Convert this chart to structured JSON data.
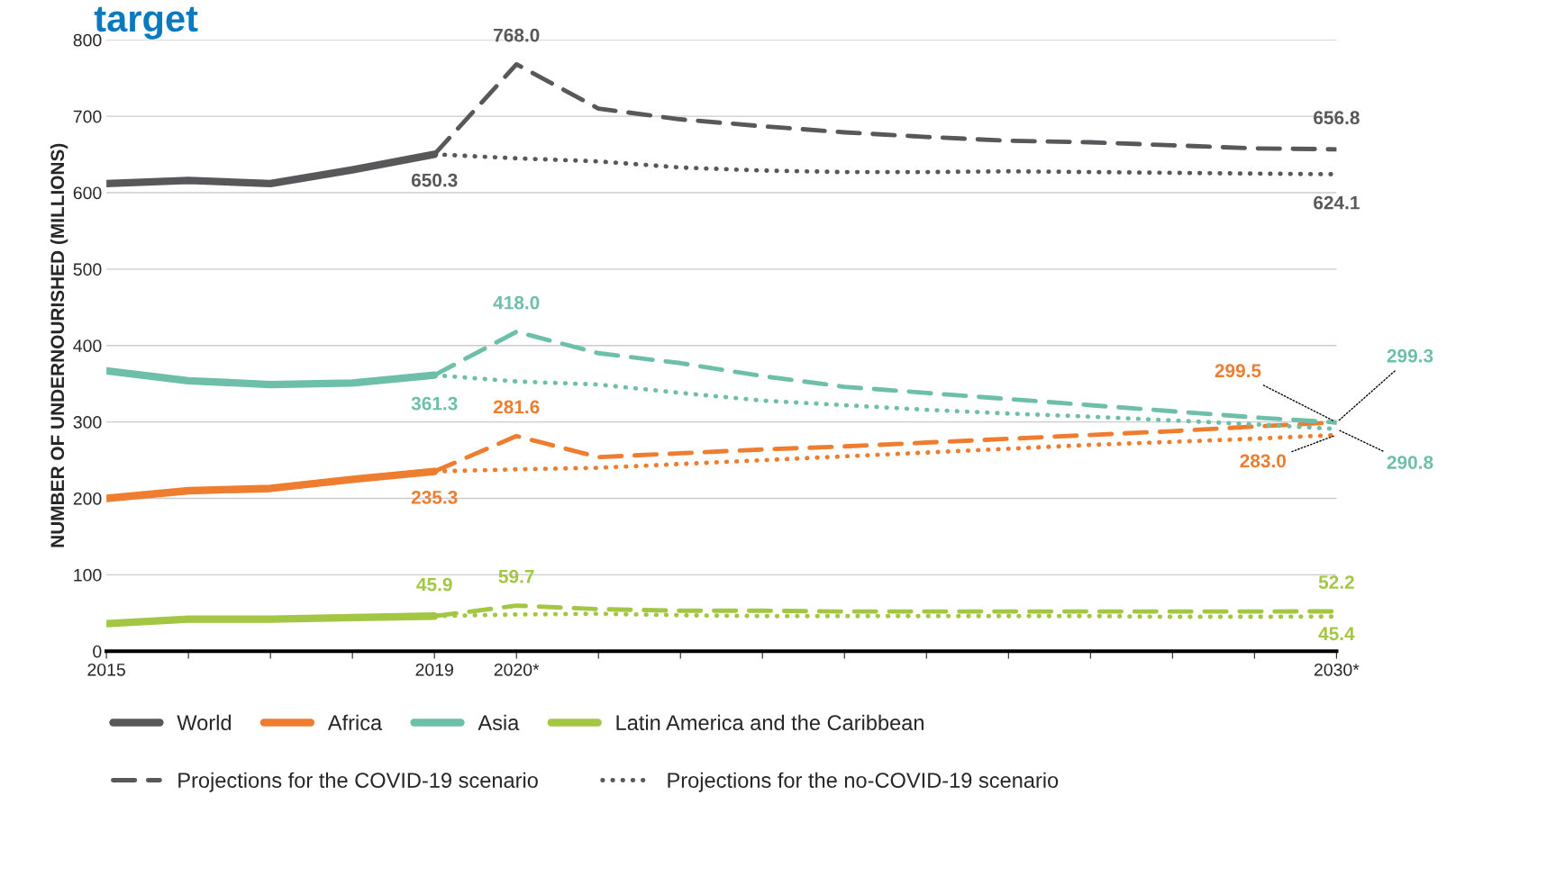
{
  "chart_data": {
    "type": "line",
    "title": "target",
    "ylabel": "NUMBER OF UNDERNOURISHED (MILLIONS)",
    "xlim": [
      2015,
      2030
    ],
    "ylim": [
      0,
      800
    ],
    "yticks": [
      0,
      100,
      200,
      300,
      400,
      500,
      600,
      700,
      800
    ],
    "xticks": [
      2015,
      {
        "value": 2016,
        "label": null
      },
      {
        "value": 2017,
        "label": null
      },
      {
        "value": 2018,
        "label": null
      },
      2019,
      {
        "value": 2020,
        "label": "2020*"
      },
      {
        "value": 2021,
        "label": null
      },
      {
        "value": 2022,
        "label": null
      },
      {
        "value": 2023,
        "label": null
      },
      {
        "value": 2024,
        "label": null
      },
      {
        "value": 2025,
        "label": null
      },
      {
        "value": 2026,
        "label": null
      },
      {
        "value": 2027,
        "label": null
      },
      {
        "value": 2028,
        "label": null
      },
      {
        "value": 2029,
        "label": null
      },
      {
        "value": 2030,
        "label": "2030*"
      }
    ],
    "grid": "y",
    "legend": "bottom",
    "marker": "none",
    "series": [
      {
        "name": "World",
        "color": "#58585a",
        "line_style": "solid",
        "x": [
          2015,
          2016,
          2017,
          2018,
          2019
        ],
        "values": [
          612,
          616,
          612,
          630,
          650.3
        ],
        "value_labels": [
          null,
          null,
          null,
          null,
          "650.3"
        ]
      },
      {
        "name": "Projections for the COVID-19 scenario",
        "color": "#58585a",
        "line_style": "dashed",
        "x": [
          2019,
          2020,
          2021,
          2022,
          2023,
          2024,
          2025,
          2026,
          2027,
          2028,
          2029,
          2030
        ],
        "values": [
          650.3,
          768.0,
          710,
          696,
          687,
          679,
          673,
          668,
          666,
          662,
          658,
          656.8
        ],
        "value_labels": [
          null,
          "768.0",
          null,
          null,
          null,
          null,
          null,
          null,
          null,
          null,
          null,
          "656.8"
        ]
      },
      {
        "name": "Projections for the no-COVID-19 scenario",
        "color": "#58585a",
        "line_style": "dotted",
        "x": [
          2019,
          2020,
          2021,
          2022,
          2023,
          2024,
          2025,
          2026,
          2027,
          2028,
          2029,
          2030
        ],
        "values": [
          650.3,
          645,
          641,
          633,
          629,
          627,
          627,
          628,
          627,
          626,
          625,
          624.1
        ],
        "value_labels": [
          null,
          null,
          null,
          null,
          null,
          null,
          null,
          null,
          null,
          null,
          null,
          "624.1"
        ]
      },
      {
        "name": "Africa",
        "color": "#ef7d2f",
        "line_style": "solid",
        "x": [
          2015,
          2016,
          2017,
          2018,
          2019
        ],
        "values": [
          200,
          210,
          213,
          225,
          235.3
        ],
        "value_labels": [
          null,
          null,
          null,
          null,
          "235.3"
        ]
      },
      {
        "color": "#ef7d2f",
        "line_style": "dashed",
        "x": [
          2019,
          2020,
          2021,
          2022,
          2023,
          2024,
          2025,
          2026,
          2027,
          2028,
          2029,
          2030
        ],
        "values": [
          235.3,
          281.6,
          254,
          259,
          264,
          268,
          273,
          278,
          283,
          288,
          294,
          299.5
        ],
        "value_labels": [
          null,
          "281.6",
          null,
          null,
          null,
          null,
          null,
          null,
          null,
          null,
          null,
          "299.5"
        ]
      },
      {
        "color": "#ef7d2f",
        "line_style": "dotted",
        "x": [
          2019,
          2020,
          2021,
          2022,
          2023,
          2024,
          2025,
          2026,
          2027,
          2028,
          2029,
          2030
        ],
        "values": [
          235.3,
          238,
          240,
          245,
          250,
          255,
          260,
          265,
          270,
          274,
          278,
          283.0
        ],
        "value_labels": [
          null,
          null,
          null,
          null,
          null,
          null,
          null,
          null,
          null,
          null,
          null,
          "283.0"
        ]
      },
      {
        "name": "Asia",
        "color": "#6dbfa9",
        "line_style": "solid",
        "x": [
          2015,
          2016,
          2017,
          2018,
          2019
        ],
        "values": [
          367,
          354,
          349,
          351,
          361.3
        ],
        "value_labels": [
          null,
          null,
          null,
          null,
          "361.3"
        ]
      },
      {
        "color": "#6dbfa9",
        "line_style": "dashed",
        "x": [
          2019,
          2020,
          2021,
          2022,
          2023,
          2024,
          2025,
          2026,
          2027,
          2028,
          2029,
          2030
        ],
        "values": [
          361.3,
          418.0,
          390,
          377,
          360,
          346,
          338,
          330,
          322,
          314,
          306,
          299.3
        ],
        "value_labels": [
          null,
          "418.0",
          null,
          null,
          null,
          null,
          null,
          null,
          null,
          null,
          null,
          "299.3"
        ]
      },
      {
        "color": "#6dbfa9",
        "line_style": "dotted",
        "x": [
          2019,
          2020,
          2021,
          2022,
          2023,
          2024,
          2025,
          2026,
          2027,
          2028,
          2029,
          2030
        ],
        "values": [
          361.3,
          353,
          349,
          338,
          328,
          322,
          316,
          311,
          307,
          302,
          297,
          290.8
        ],
        "value_labels": [
          null,
          null,
          null,
          null,
          null,
          null,
          null,
          null,
          null,
          null,
          null,
          "290.8"
        ]
      },
      {
        "name": "Latin America and the Caribbean",
        "color": "#a3c644",
        "line_style": "solid",
        "x": [
          2015,
          2016,
          2017,
          2018,
          2019
        ],
        "values": [
          36,
          42,
          42,
          44,
          45.9
        ],
        "value_labels": [
          null,
          null,
          null,
          null,
          "45.9"
        ]
      },
      {
        "color": "#a3c644",
        "line_style": "dashed",
        "x": [
          2019,
          2020,
          2021,
          2022,
          2023,
          2024,
          2025,
          2026,
          2027,
          2028,
          2029,
          2030
        ],
        "values": [
          45.9,
          59.7,
          55,
          53,
          53,
          52,
          52,
          52,
          52,
          52,
          52,
          52.2
        ],
        "value_labels": [
          null,
          "59.7",
          null,
          null,
          null,
          null,
          null,
          null,
          null,
          null,
          null,
          "52.2"
        ]
      },
      {
        "color": "#a3c644",
        "line_style": "dotted",
        "x": [
          2019,
          2020,
          2021,
          2022,
          2023,
          2024,
          2025,
          2026,
          2027,
          2028,
          2029,
          2030
        ],
        "values": [
          45.9,
          48,
          49,
          47,
          46,
          46,
          46,
          46,
          46,
          45,
          45,
          45.4
        ],
        "value_labels": [
          null,
          null,
          null,
          null,
          null,
          null,
          null,
          null,
          null,
          null,
          null,
          "45.4"
        ]
      }
    ]
  }
}
